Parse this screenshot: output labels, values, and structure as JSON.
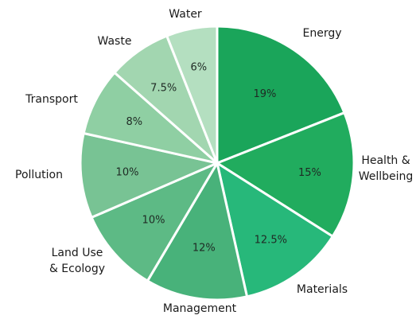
{
  "chart_data": {
    "type": "pie",
    "title": "",
    "categories": [
      "Energy",
      "Health & Wellbeing",
      "Materials",
      "Management",
      "Land Use & Ecology",
      "Pollution",
      "Transport",
      "Waste",
      "Water"
    ],
    "category_lines": [
      [
        "Energy"
      ],
      [
        "Health &",
        "Wellbeing"
      ],
      [
        "Materials"
      ],
      [
        "Management"
      ],
      [
        "Land Use",
        "& Ecology"
      ],
      [
        "Pollution"
      ],
      [
        "Transport"
      ],
      [
        "Waste"
      ],
      [
        "Water"
      ]
    ],
    "values": [
      19,
      15,
      12.5,
      12,
      10,
      10,
      8,
      7.5,
      6
    ],
    "value_labels": [
      "19%",
      "15%",
      "12.5%",
      "12%",
      "10%",
      "10%",
      "8%",
      "7.5%",
      "6%"
    ],
    "colors": [
      "#1aa55a",
      "#21ac5e",
      "#27b87a",
      "#48b27a",
      "#5dba85",
      "#78c394",
      "#8fcfa3",
      "#a2d6b0",
      "#b4dfc0"
    ],
    "start_angle": "12 o'clock",
    "direction": "clockwise",
    "legend": "none (labels placed around the pie)"
  }
}
